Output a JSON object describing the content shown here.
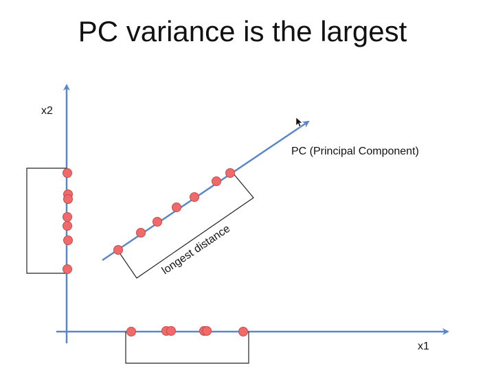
{
  "title": "PC variance is the largest",
  "labels": {
    "x_axis": "x1",
    "y_axis": "x2",
    "pc_axis": "PC (Principal Component)",
    "bracket": "longest distance"
  },
  "colors": {
    "axis": "#5b86c6",
    "point_fill": "#ef6b6b",
    "point_stroke": "#c84a4a",
    "bracket": "#222222",
    "text": "#111111"
  },
  "icons": {
    "cursor": "mouse-pointer-icon"
  }
}
